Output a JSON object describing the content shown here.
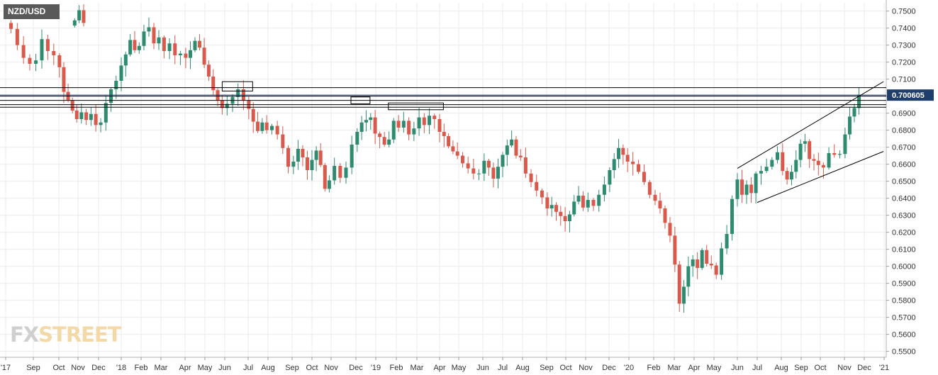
{
  "symbol": "NZD/USD",
  "watermark": {
    "part1": "FX",
    "part2": "STREET"
  },
  "colors": {
    "up": "#2e8b6f",
    "down": "#d9594c",
    "last_price_bg": "#1f3e6b",
    "grid": "#ebebeb",
    "line": "#000000",
    "price_line": "#1f3e6b"
  },
  "chart_data": {
    "type": "candlestick",
    "title": "",
    "timeframe": "weekly",
    "x_tick_labels": [
      "'17",
      "Sep",
      "Oct",
      "Nov",
      "Dec",
      "'18",
      "Feb",
      "Mar",
      "Apr",
      "May",
      "Jun",
      "Jul",
      "Aug",
      "Sep",
      "Oct",
      "Nov",
      "Dec",
      "'19",
      "Feb",
      "Mar",
      "Apr",
      "May",
      "Jun",
      "Jul",
      "Aug",
      "Sep",
      "Oct",
      "Nov",
      "Dec",
      "'20",
      "Feb",
      "Mar",
      "Apr",
      "May",
      "Jun",
      "Jul",
      "Aug",
      "Sep",
      "Oct",
      "Nov",
      "Dec",
      "'21"
    ],
    "y_ticks": [
      "0.7500",
      "0.7400",
      "0.7300",
      "0.7200",
      "0.7100",
      "0.7000",
      "0.6900",
      "0.6800",
      "0.6700",
      "0.6600",
      "0.6500",
      "0.6400",
      "0.6300",
      "0.6200",
      "0.6100",
      "0.6000",
      "0.5900",
      "0.5800",
      "0.5700",
      "0.5600",
      "0.5500"
    ],
    "ylim": [
      0.5465,
      0.754
    ],
    "last_price": "0.700605",
    "last_price_value": 0.700605,
    "horizontal_levels": [
      0.705,
      0.7,
      0.6975,
      0.695,
      0.6935
    ],
    "trendlines": [
      {
        "from": [
          "2020-06-01",
          0.6575
        ],
        "to": [
          "2020-12-31",
          0.7085
        ]
      },
      {
        "from": [
          "2020-07-01",
          0.6375
        ],
        "to": [
          "2020-12-31",
          0.6675
        ]
      }
    ],
    "highlight_boxes": [
      {
        "from": "2018-05-28",
        "to": "2018-07-08",
        "low": 0.703,
        "high": 0.7085
      },
      {
        "from": "2018-11-25",
        "to": "2018-12-23",
        "low": 0.6955,
        "high": 0.6995
      },
      {
        "from": "2019-01-20",
        "to": "2019-04-07",
        "low": 0.692,
        "high": 0.696
      }
    ],
    "weekly_closes": [
      0.7445,
      0.7505,
      0.743,
      0.7395,
      0.73,
      0.7225,
      0.719,
      0.721,
      0.7335,
      0.7265,
      0.724,
      0.717,
      0.7025,
      0.6975,
      0.6915,
      0.6865,
      0.6905,
      0.686,
      0.6895,
      0.683,
      0.6845,
      0.696,
      0.704,
      0.709,
      0.718,
      0.7245,
      0.733,
      0.727,
      0.7295,
      0.738,
      0.7405,
      0.731,
      0.7345,
      0.7265,
      0.731,
      0.724,
      0.725,
      0.7225,
      0.727,
      0.7325,
      0.7285,
      0.7185,
      0.7115,
      0.7035,
      0.6975,
      0.693,
      0.6955,
      0.6995,
      0.704,
      0.6975,
      0.6925,
      0.685,
      0.6795,
      0.6845,
      0.68,
      0.6825,
      0.6775,
      0.6695,
      0.6585,
      0.6615,
      0.669,
      0.664,
      0.6565,
      0.6625,
      0.668,
      0.6595,
      0.6455,
      0.6505,
      0.659,
      0.652,
      0.658,
      0.6715,
      0.679,
      0.6845,
      0.686,
      0.6875,
      0.678,
      0.676,
      0.6715,
      0.6745,
      0.6855,
      0.6815,
      0.6855,
      0.6775,
      0.681,
      0.6875,
      0.683,
      0.6885,
      0.6865,
      0.679,
      0.6765,
      0.6705,
      0.6675,
      0.665,
      0.6605,
      0.6575,
      0.6545,
      0.6545,
      0.662,
      0.658,
      0.6515,
      0.6585,
      0.6655,
      0.671,
      0.6745,
      0.665,
      0.664,
      0.6545,
      0.6495,
      0.6445,
      0.6405,
      0.634,
      0.636,
      0.632,
      0.6295,
      0.6265,
      0.6305,
      0.638,
      0.6415,
      0.6345,
      0.639,
      0.6355,
      0.642,
      0.648,
      0.6565,
      0.663,
      0.6695,
      0.6655,
      0.6615,
      0.66,
      0.6555,
      0.6495,
      0.642,
      0.6385,
      0.634,
      0.6255,
      0.618,
      0.601,
      0.578,
      0.588,
      0.6,
      0.604,
      0.599,
      0.6095,
      0.6015,
      0.6005,
      0.595,
      0.6105,
      0.619,
      0.6395,
      0.651,
      0.642,
      0.648,
      0.643,
      0.6545,
      0.656,
      0.6585,
      0.6625,
      0.667,
      0.656,
      0.651,
      0.6555,
      0.6625,
      0.672,
      0.6735,
      0.663,
      0.662,
      0.6595,
      0.658,
      0.6665,
      0.6655,
      0.666,
      0.6775,
      0.688,
      0.693,
      0.7005
    ]
  }
}
